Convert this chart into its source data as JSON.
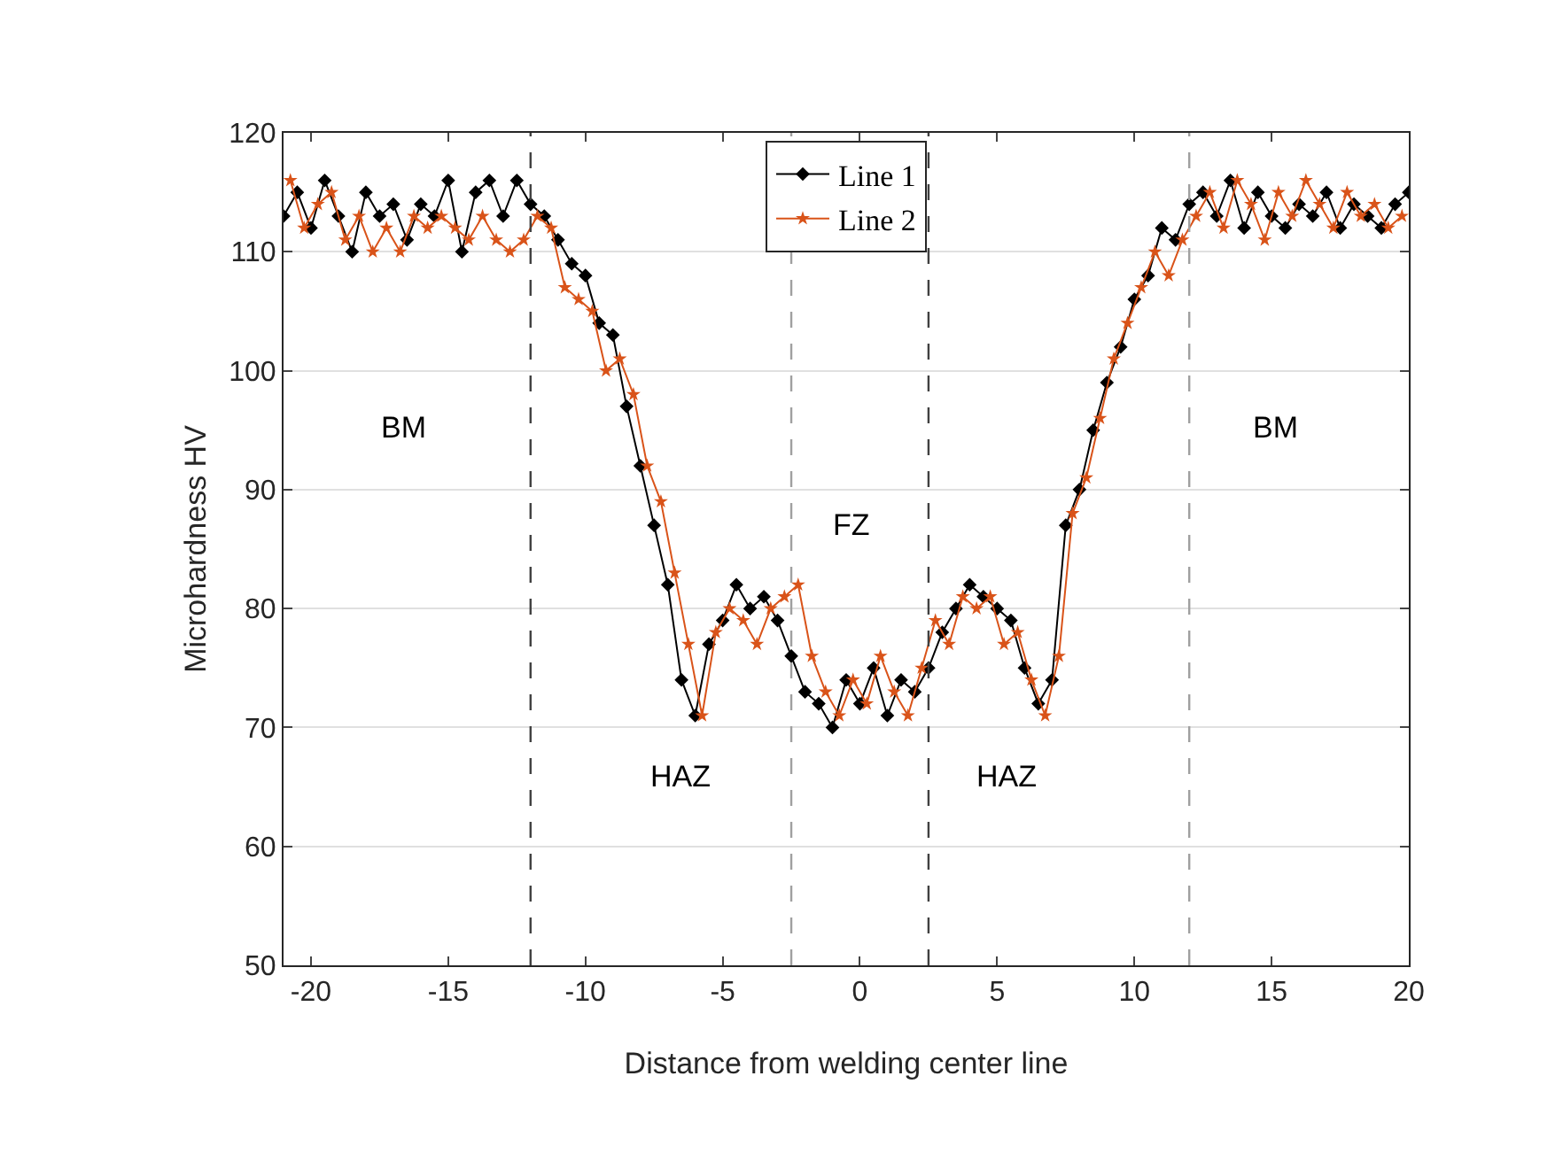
{
  "chart_data": {
    "type": "line",
    "xlabel": "Distance from welding center line",
    "ylabel": "Microhardness HV",
    "xlim": [
      -21,
      20
    ],
    "xticks": [
      -20,
      -15,
      -10,
      -5,
      0,
      5,
      10,
      15,
      20
    ],
    "ylim": [
      50,
      120
    ],
    "yticks": [
      50,
      60,
      70,
      80,
      90,
      100,
      110,
      120
    ],
    "grid": "y",
    "legend": "top",
    "line_style": "solid",
    "series": [
      {
        "name": "Line 1",
        "color": "#000000",
        "marker": "diamond",
        "x": [
          -21,
          -20.5,
          -20,
          -19.5,
          -19,
          -18.5,
          -18,
          -17.5,
          -17,
          -16.5,
          -16,
          -15.5,
          -15,
          -14.5,
          -14,
          -13.5,
          -13,
          -12.5,
          -12,
          -11.5,
          -11,
          -10.5,
          -10,
          -9.5,
          -9,
          -8.5,
          -8,
          -7.5,
          -7,
          -6.5,
          -6,
          -5.5,
          -5,
          -4.5,
          -4,
          -3.5,
          -3,
          -2.5,
          -2,
          -1.5,
          -1,
          -0.5,
          0,
          0.5,
          1,
          1.5,
          2,
          2.5,
          3,
          3.5,
          4,
          4.5,
          5,
          5.5,
          6,
          6.5,
          7,
          7.5,
          8,
          8.5,
          9,
          9.5,
          10,
          10.5,
          11,
          11.5,
          12,
          12.5,
          13,
          13.5,
          14,
          14.5,
          15,
          15.5,
          16,
          16.5,
          17,
          17.5,
          18,
          18.5,
          19,
          19.5,
          20
        ],
        "values": [
          113,
          115,
          112,
          116,
          113,
          110,
          115,
          113,
          114,
          111,
          114,
          113,
          116,
          110,
          115,
          116,
          113,
          116,
          114,
          113,
          111,
          109,
          108,
          104,
          103,
          97,
          92,
          87,
          82,
          74,
          71,
          77,
          79,
          82,
          80,
          81,
          79,
          76,
          73,
          72,
          70,
          74,
          72,
          75,
          71,
          74,
          73,
          75,
          78,
          80,
          82,
          81,
          80,
          79,
          75,
          72,
          74,
          87,
          90,
          95,
          99,
          102,
          106,
          108,
          112,
          111,
          114,
          115,
          113,
          116,
          112,
          115,
          113,
          112,
          114,
          113,
          115,
          112,
          114,
          113,
          112,
          114,
          115
        ]
      },
      {
        "name": "Line 2",
        "color": "#d95319",
        "marker": "star",
        "x": [
          -20.75,
          -20.25,
          -19.75,
          -19.25,
          -18.75,
          -18.25,
          -17.75,
          -17.25,
          -16.75,
          -16.25,
          -15.75,
          -15.25,
          -14.75,
          -14.25,
          -13.75,
          -13.25,
          -12.75,
          -12.25,
          -11.75,
          -11.25,
          -10.75,
          -10.25,
          -9.75,
          -9.25,
          -8.75,
          -8.25,
          -7.75,
          -7.25,
          -6.75,
          -6.25,
          -5.75,
          -5.25,
          -4.75,
          -4.25,
          -3.75,
          -3.25,
          -2.75,
          -2.25,
          -1.75,
          -1.25,
          -0.75,
          -0.25,
          0.25,
          0.75,
          1.25,
          1.75,
          2.25,
          2.75,
          3.25,
          3.75,
          4.25,
          4.75,
          5.25,
          5.75,
          6.25,
          6.75,
          7.25,
          7.75,
          8.25,
          8.75,
          9.25,
          9.75,
          10.25,
          10.75,
          11.25,
          11.75,
          12.25,
          12.75,
          13.25,
          13.75,
          14.25,
          14.75,
          15.25,
          15.75,
          16.25,
          16.75,
          17.25,
          17.75,
          18.25,
          18.75,
          19.25,
          19.75
        ],
        "values": [
          116,
          112,
          114,
          115,
          111,
          113,
          110,
          112,
          110,
          113,
          112,
          113,
          112,
          111,
          113,
          111,
          110,
          111,
          113,
          112,
          107,
          106,
          105,
          100,
          101,
          98,
          92,
          89,
          83,
          77,
          71,
          78,
          80,
          79,
          77,
          80,
          81,
          82,
          76,
          73,
          71,
          74,
          72,
          76,
          73,
          71,
          75,
          79,
          77,
          81,
          80,
          81,
          77,
          78,
          74,
          71,
          76,
          88,
          91,
          96,
          101,
          104,
          107,
          110,
          108,
          111,
          113,
          115,
          112,
          116,
          114,
          111,
          115,
          113,
          116,
          114,
          112,
          115,
          113,
          114,
          112,
          113
        ]
      }
    ],
    "ref_lines": [
      {
        "axis": "x",
        "value": -12,
        "color": "#404040",
        "line_style": "dashed"
      },
      {
        "axis": "x",
        "value": -2.5,
        "color": "#a0a0a0",
        "line_style": "dashed"
      },
      {
        "axis": "x",
        "value": 2.5,
        "color": "#404040",
        "line_style": "dashed"
      },
      {
        "axis": "x",
        "value": 12,
        "color": "#a0a0a0",
        "line_style": "dashed"
      }
    ],
    "annotations": [
      "BM",
      "BM",
      "FZ",
      "HAZ",
      "HAZ"
    ]
  }
}
